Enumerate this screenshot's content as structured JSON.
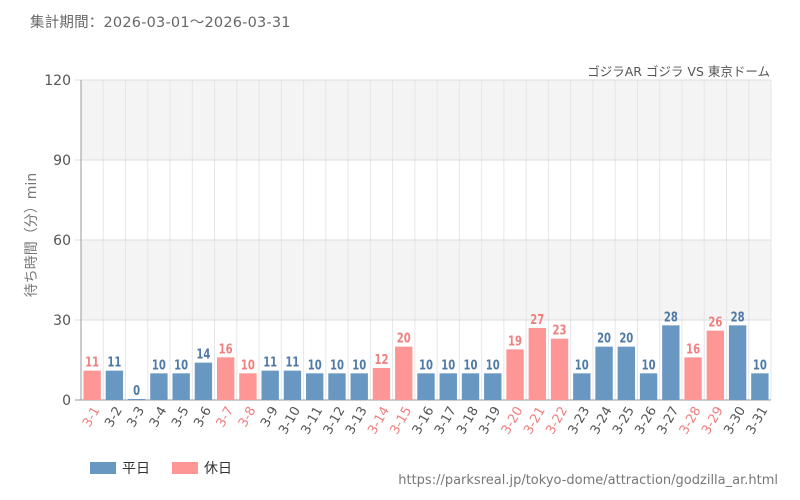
{
  "header": {
    "period": "集計期間：2026-03-01〜2026-03-31",
    "attraction": "ゴジラAR ゴジラ VS 東京ドーム"
  },
  "footer": {
    "source_url": "https://parksreal.jp/tokyo-dome/attraction/godzilla_ar.html"
  },
  "colors": {
    "weekday": "#6897c1",
    "holiday": "#ff9696",
    "weekday_label": "#4f7aa6",
    "holiday_label": "#f07f7f",
    "axis_label": "#555555",
    "grid": "#dddddd",
    "band": "#f4f4f4"
  },
  "chart_data": {
    "type": "bar",
    "ylabel": "待ち時間（分）min",
    "ylim": [
      0,
      120
    ],
    "yticks": [
      0,
      30,
      60,
      90,
      120
    ],
    "grid": true,
    "legend_position": "bottom-left",
    "categories": [
      "3-1",
      "3-2",
      "3-3",
      "3-4",
      "3-5",
      "3-6",
      "3-7",
      "3-8",
      "3-9",
      "3-10",
      "3-11",
      "3-12",
      "3-13",
      "3-14",
      "3-15",
      "3-16",
      "3-17",
      "3-18",
      "3-19",
      "3-20",
      "3-21",
      "3-22",
      "3-23",
      "3-24",
      "3-25",
      "3-26",
      "3-27",
      "3-28",
      "3-29",
      "3-30",
      "3-31"
    ],
    "values": [
      11,
      11,
      0,
      10,
      10,
      14,
      16,
      10,
      11,
      11,
      10,
      10,
      10,
      12,
      20,
      10,
      10,
      10,
      10,
      19,
      27,
      23,
      10,
      20,
      20,
      10,
      28,
      16,
      26,
      28,
      10
    ],
    "day_type": [
      "holiday",
      "weekday",
      "weekday",
      "weekday",
      "weekday",
      "weekday",
      "holiday",
      "holiday",
      "weekday",
      "weekday",
      "weekday",
      "weekday",
      "weekday",
      "holiday",
      "holiday",
      "weekday",
      "weekday",
      "weekday",
      "weekday",
      "holiday",
      "holiday",
      "holiday",
      "weekday",
      "weekday",
      "weekday",
      "weekday",
      "weekday",
      "holiday",
      "holiday",
      "weekday",
      "weekday"
    ],
    "series": [
      {
        "key": "weekday",
        "name": "平日"
      },
      {
        "key": "holiday",
        "name": "休日"
      }
    ]
  }
}
